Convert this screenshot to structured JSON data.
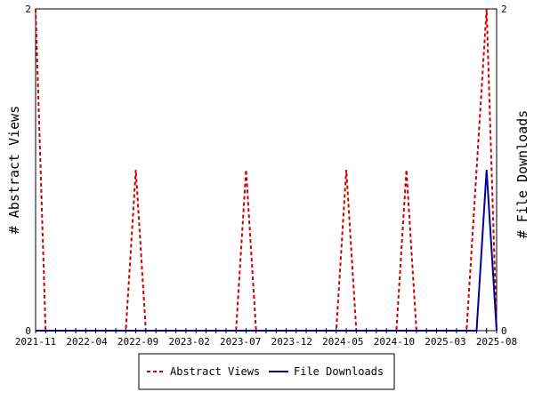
{
  "chart_data": {
    "type": "line",
    "title": "",
    "xlabel": "",
    "ylabel_left": "# Abstract Views",
    "ylabel_right": "# File Downloads",
    "x_tick_labels": [
      "2021-11",
      "2022-04",
      "2022-09",
      "2023-02",
      "2023-07",
      "2023-12",
      "2024-05",
      "2024-10",
      "2025-03",
      "2025-08"
    ],
    "ylim_left": [
      0,
      2
    ],
    "ylim_right": [
      0,
      2
    ],
    "y_tick_labels_left": [
      "0",
      "2"
    ],
    "y_tick_labels_right": [
      "0",
      "2"
    ],
    "x_count": 47,
    "legend_placement": "bottom-center",
    "series": [
      {
        "name": "Abstract Views",
        "axis": "left",
        "color": "#cc0000",
        "style": "dashed",
        "values": [
          2,
          0,
          0,
          0,
          0,
          0,
          0,
          0,
          0,
          0,
          1,
          0,
          0,
          0,
          0,
          0,
          0,
          0,
          0,
          0,
          0,
          1,
          0,
          0,
          0,
          0,
          0,
          0,
          0,
          0,
          0,
          1,
          0,
          0,
          0,
          0,
          0,
          1,
          0,
          0,
          0,
          0,
          0,
          0,
          1,
          2,
          0
        ]
      },
      {
        "name": "File Downloads",
        "axis": "right",
        "color": "#000099",
        "style": "solid",
        "values": [
          0,
          0,
          0,
          0,
          0,
          0,
          0,
          0,
          0,
          0,
          0,
          0,
          0,
          0,
          0,
          0,
          0,
          0,
          0,
          0,
          0,
          0,
          0,
          0,
          0,
          0,
          0,
          0,
          0,
          0,
          0,
          0,
          0,
          0,
          0,
          0,
          0,
          0,
          0,
          0,
          0,
          0,
          0,
          0,
          0,
          1,
          0
        ]
      }
    ]
  }
}
